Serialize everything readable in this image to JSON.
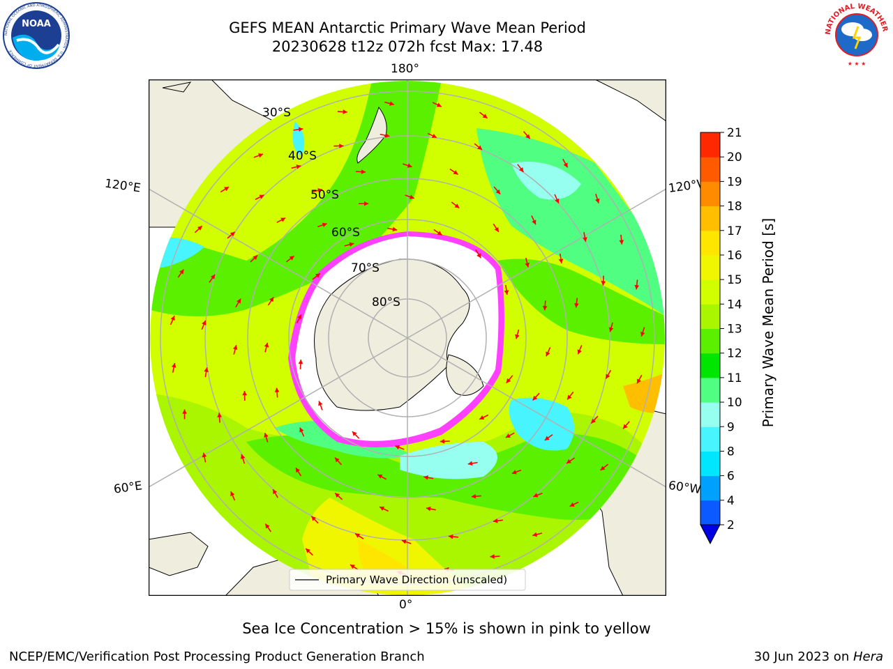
{
  "title": {
    "line1": "GEFS MEAN Antarctic Primary Wave Mean Period",
    "line2": "20230628 t12z 072h fcst   Max: 17.48"
  },
  "logos": {
    "left": "noaa-logo",
    "left_text": "NOAA",
    "left_ring_text": "NATIONAL OCEANIC AND ATMOSPHERIC ADMINISTRATION · U.S. DEPARTMENT OF COMMERCE",
    "right": "nws-logo",
    "right_ring_text": "NATIONAL WEATHER SERVICE"
  },
  "map": {
    "projection": "south polar stereographic",
    "lon_labels": {
      "top": "180°",
      "bottom": "0°",
      "upper_left": "120°E",
      "upper_right": "120°W",
      "lower_left": "60°E",
      "lower_right": "60°W"
    },
    "lat_labels": [
      "30°S",
      "40°S",
      "50°S",
      "60°S",
      "70°S",
      "80°S"
    ],
    "legend": "Primary Wave Direction (unscaled)"
  },
  "colorbar": {
    "label": "Primary Wave Mean Period [s]",
    "ticks": [
      "2",
      "4",
      "6",
      "8",
      "9",
      "10",
      "11",
      "12",
      "13",
      "14",
      "15",
      "16",
      "17",
      "18",
      "19",
      "20",
      "21"
    ],
    "colors": [
      "#0a5aff",
      "#00a0ff",
      "#00e6ff",
      "#48f5ff",
      "#96fff0",
      "#50ff82",
      "#00e600",
      "#5af000",
      "#aaf500",
      "#d2ff00",
      "#f0f500",
      "#ffe600",
      "#ffbe00",
      "#ff8c00",
      "#ff5a00",
      "#ff2800"
    ],
    "extend_color": "#0000e0"
  },
  "caption": "Sea Ice Concentration > 15% is shown in pink to yellow",
  "footer": {
    "left": "NCEP/EMC/Verification Post Processing Product Generation Branch",
    "right_date": "30 Jun 2023 on ",
    "right_host": "Hera"
  }
}
